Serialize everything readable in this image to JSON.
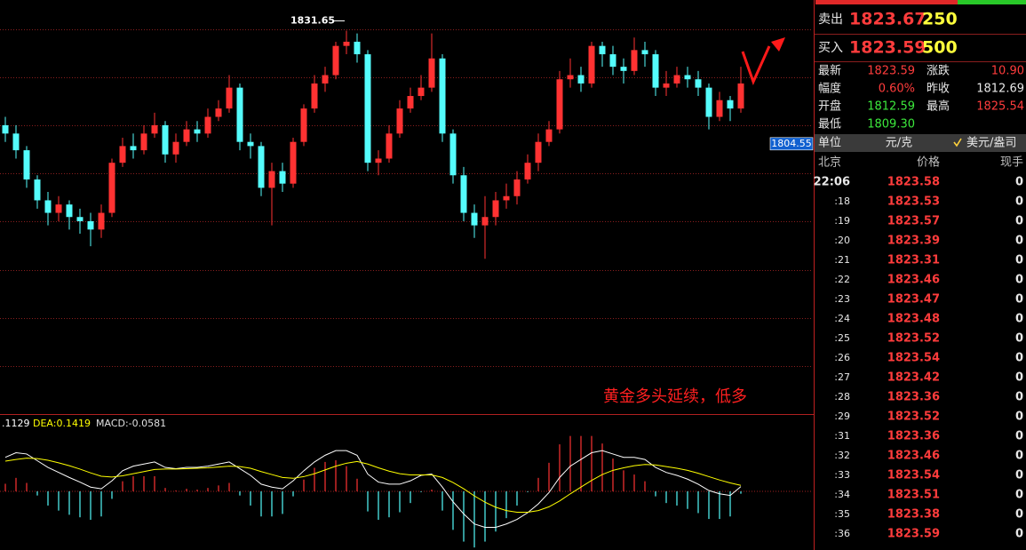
{
  "chart_data": [
    {
      "type": "candlestick",
      "up_color": "#ff3232",
      "down_color": "#54fcfc",
      "ylim": [
        1740,
        1839
      ],
      "open": [
        1809,
        1807,
        1803,
        1796,
        1791,
        1788,
        1790,
        1787,
        1786,
        1784,
        1788,
        1800,
        1804,
        1803,
        1807,
        1809,
        1802,
        1805,
        1808,
        1807,
        1811,
        1813,
        1818,
        1805,
        1804,
        1794,
        1798,
        1795,
        1805,
        1813,
        1819,
        1821,
        1828,
        1829,
        1826,
        1800,
        1801,
        1807,
        1813,
        1816,
        1818,
        1825,
        1807,
        1797,
        1788,
        1785,
        1787,
        1791,
        1792,
        1796,
        1800,
        1805,
        1808,
        1820,
        1821,
        1819,
        1828,
        1826,
        1823,
        1822,
        1827,
        1826,
        1818,
        1819,
        1821,
        1820,
        1818,
        1811,
        1815,
        1813
      ],
      "high": [
        1811,
        1809,
        1804,
        1797,
        1793,
        1792,
        1791,
        1789,
        1788,
        1790,
        1801,
        1806,
        1807,
        1809,
        1812,
        1810,
        1807,
        1810,
        1810,
        1813,
        1815,
        1821,
        1819,
        1807,
        1805,
        1800,
        1800,
        1806,
        1814,
        1821,
        1823,
        1829,
        1831.65,
        1831,
        1827,
        1803,
        1809,
        1815,
        1818,
        1821,
        1831,
        1826,
        1808,
        1799,
        1790,
        1792,
        1793,
        1795,
        1798,
        1802,
        1807,
        1810,
        1822,
        1825,
        1823,
        1829,
        1829,
        1828,
        1825,
        1830,
        1829,
        1827,
        1822,
        1823,
        1823,
        1822,
        1819,
        1817,
        1816,
        1823
      ],
      "low": [
        1805,
        1801,
        1794,
        1789,
        1785,
        1786,
        1784,
        1783,
        1780,
        1782,
        1787,
        1799,
        1801,
        1802,
        1806,
        1800,
        1800,
        1804,
        1805,
        1806,
        1810,
        1812,
        1803,
        1801,
        1792,
        1785,
        1793,
        1794,
        1804,
        1812,
        1817,
        1820,
        1826,
        1824,
        1798,
        1797,
        1800,
        1806,
        1812,
        1815,
        1817,
        1805,
        1795,
        1786,
        1782,
        1777,
        1785,
        1789,
        1790,
        1795,
        1798,
        1804,
        1807,
        1818,
        1817,
        1818,
        1823,
        1821,
        1819,
        1821,
        1823,
        1816,
        1816,
        1818,
        1818,
        1816,
        1808,
        1810,
        1810,
        1812
      ],
      "close": [
        1807,
        1803,
        1796,
        1791,
        1788,
        1790,
        1787,
        1786,
        1784,
        1788,
        1800,
        1804,
        1803,
        1807,
        1809,
        1802,
        1805,
        1808,
        1807,
        1811,
        1813,
        1818,
        1805,
        1804,
        1794,
        1798,
        1795,
        1805,
        1813,
        1819,
        1821,
        1828,
        1829,
        1826,
        1800,
        1801,
        1807,
        1813,
        1816,
        1818,
        1825,
        1807,
        1797,
        1788,
        1785,
        1787,
        1791,
        1792,
        1796,
        1800,
        1805,
        1808,
        1820,
        1821,
        1819,
        1828,
        1826,
        1823,
        1822,
        1827,
        1826,
        1818,
        1819,
        1821,
        1820,
        1818,
        1811,
        1815,
        1813,
        1819
      ],
      "high_marker": 1831.65,
      "price_tag": 1804.55,
      "annotation": "黄金多头延续，低多"
    },
    {
      "type": "macd",
      "ylim": [
        -1.4,
        1.8
      ],
      "series": [
        {
          "label": ".1129",
          "color": "#ffffff",
          "values": [
            0.81,
            0.92,
            0.89,
            0.73,
            0.57,
            0.45,
            0.33,
            0.22,
            0.1,
            0.06,
            0.25,
            0.49,
            0.6,
            0.65,
            0.7,
            0.57,
            0.54,
            0.57,
            0.57,
            0.6,
            0.65,
            0.7,
            0.54,
            0.38,
            0.17,
            0.1,
            0.06,
            0.25,
            0.49,
            0.7,
            0.86,
            0.97,
            0.97,
            0.86,
            0.41,
            0.22,
            0.17,
            0.17,
            0.25,
            0.38,
            0.41,
            0.1,
            -0.25,
            -0.54,
            -0.78,
            -0.86,
            -0.86,
            -0.78,
            -0.67,
            -0.51,
            -0.3,
            -0.03,
            0.33,
            0.6,
            0.76,
            0.92,
            0.97,
            0.89,
            0.81,
            0.81,
            0.76,
            0.57,
            0.45,
            0.38,
            0.29,
            0.17,
            0.02,
            -0.06,
            -0.1,
            0.1129
          ]
        },
        {
          "label": "DEA:0.1419",
          "color": "#ffff00",
          "values": [
            0.72,
            0.76,
            0.79,
            0.78,
            0.74,
            0.68,
            0.61,
            0.53,
            0.44,
            0.36,
            0.34,
            0.37,
            0.42,
            0.47,
            0.52,
            0.53,
            0.53,
            0.54,
            0.55,
            0.56,
            0.58,
            0.6,
            0.59,
            0.55,
            0.47,
            0.4,
            0.33,
            0.31,
            0.35,
            0.42,
            0.51,
            0.6,
            0.67,
            0.71,
            0.65,
            0.56,
            0.48,
            0.42,
            0.39,
            0.39,
            0.39,
            0.33,
            0.21,
            0.06,
            -0.11,
            -0.26,
            -0.38,
            -0.46,
            -0.5,
            -0.5,
            -0.46,
            -0.37,
            -0.23,
            -0.06,
            0.1,
            0.26,
            0.4,
            0.5,
            0.56,
            0.61,
            0.64,
            0.63,
            0.59,
            0.55,
            0.5,
            0.43,
            0.35,
            0.27,
            0.2,
            0.1419
          ]
        }
      ],
      "histogram": {
        "label": "MACD:-0.0581",
        "up_color": "#ff3232",
        "down_color": "#54fcfc",
        "values": [
          0.18,
          0.32,
          0.2,
          -0.1,
          -0.34,
          -0.46,
          -0.56,
          -0.62,
          -0.68,
          -0.6,
          -0.18,
          0.24,
          0.36,
          0.36,
          0.36,
          0.08,
          0.02,
          0.06,
          0.04,
          0.08,
          0.14,
          0.2,
          -0.1,
          -0.34,
          -0.6,
          -0.6,
          -0.54,
          -0.12,
          0.28,
          0.56,
          0.7,
          0.74,
          0.6,
          0.3,
          -0.48,
          -0.68,
          -0.62,
          -0.5,
          -0.28,
          -0.02,
          0.04,
          -0.46,
          -0.92,
          -1.2,
          -1.34,
          -1.2,
          -0.96,
          -0.64,
          -0.34,
          -0.02,
          0.32,
          0.68,
          1.12,
          1.32,
          1.32,
          1.32,
          1.14,
          0.78,
          0.5,
          0.4,
          0.24,
          -0.12,
          -0.28,
          -0.34,
          -0.42,
          -0.52,
          -0.66,
          -0.66,
          -0.6,
          -0.0581
        ]
      }
    }
  ],
  "quote": {
    "ask": {
      "label": "卖出",
      "price": "1823.67",
      "volume": "250"
    },
    "bid": {
      "label": "买入",
      "price": "1823.59",
      "volume": "500"
    },
    "fields": [
      [
        "最新",
        "1823.59",
        "涨跌",
        "10.90"
      ],
      [
        "幅度",
        "0.60%",
        "昨收",
        "1812.69"
      ],
      [
        "开盘",
        "1812.59",
        "最高",
        "1825.54"
      ],
      [
        "最低",
        "1809.30"
      ]
    ],
    "unit": {
      "label": "单位",
      "value": "元/克",
      "alt": "美元/盎司"
    },
    "header": [
      "北京",
      "价格",
      "现手"
    ],
    "ticks": [
      [
        "22:06",
        "1823.58",
        "0"
      ],
      [
        ":18",
        "1823.53",
        "0"
      ],
      [
        ":19",
        "1823.57",
        "0"
      ],
      [
        ":20",
        "1823.39",
        "0"
      ],
      [
        ":21",
        "1823.31",
        "0"
      ],
      [
        ":22",
        "1823.46",
        "0"
      ],
      [
        ":23",
        "1823.47",
        "0"
      ],
      [
        ":24",
        "1823.48",
        "0"
      ],
      [
        ":25",
        "1823.52",
        "0"
      ],
      [
        ":26",
        "1823.54",
        "0"
      ],
      [
        ":27",
        "1823.42",
        "0"
      ],
      [
        ":28",
        "1823.36",
        "0"
      ],
      [
        ":29",
        "1823.52",
        "0"
      ],
      [
        ":31",
        "1823.36",
        "0"
      ],
      [
        ":32",
        "1823.46",
        "0"
      ],
      [
        ":33",
        "1823.54",
        "0"
      ],
      [
        ":34",
        "1823.51",
        "0"
      ],
      [
        ":35",
        "1823.38",
        "0"
      ],
      [
        ":36",
        "1823.59",
        "0"
      ]
    ]
  }
}
